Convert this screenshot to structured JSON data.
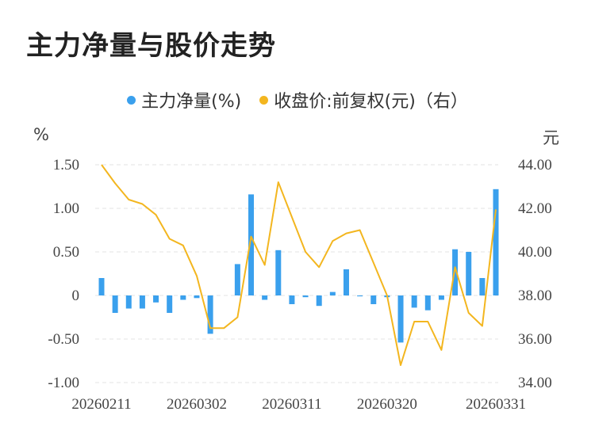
{
  "page": {
    "title": "主力净量与股价走势"
  },
  "legend": [
    {
      "label": "主力净量(%)",
      "color": "#3aa0ed"
    },
    {
      "label": "收盘价:前复权(元)（右）",
      "color": "#f3b61f"
    }
  ],
  "units": {
    "left": "%",
    "right": "元"
  },
  "colors": {
    "bar": "#3aa0ed",
    "line": "#f3b61f",
    "grid": "#e3e3e3"
  },
  "chart_data": {
    "type": "bar+line",
    "x_tick_labels": [
      "20260211",
      "20260302",
      "20260311",
      "20260320",
      "20260331"
    ],
    "left_axis": {
      "ylim": [
        -1.0,
        1.5
      ],
      "ticks": [
        "1.50",
        "1.00",
        "0.50",
        "0",
        "-0.50",
        "-1.00"
      ],
      "tick_values": [
        1.5,
        1.0,
        0.5,
        0,
        -0.5,
        -1.0
      ]
    },
    "right_axis": {
      "ylim": [
        34.0,
        44.0
      ],
      "ticks": [
        "44.00",
        "42.00",
        "40.00",
        "38.00",
        "36.00",
        "34.00"
      ],
      "tick_values": [
        44,
        42,
        40,
        38,
        36,
        34
      ]
    },
    "series": [
      {
        "name": "主力净量(%)",
        "kind": "bar",
        "values": [
          0.2,
          -0.2,
          -0.15,
          -0.15,
          -0.08,
          -0.2,
          -0.05,
          -0.03,
          -0.44,
          0.0,
          0.36,
          1.16,
          -0.05,
          0.52,
          -0.1,
          -0.02,
          -0.12,
          0.04,
          0.3,
          -0.01,
          -0.1,
          -0.02,
          -0.54,
          -0.14,
          -0.17,
          -0.05,
          0.53,
          0.5,
          0.2,
          1.22
        ]
      },
      {
        "name": "收盘价:前复权(元)（右）",
        "kind": "line",
        "values": [
          44.0,
          43.15,
          42.4,
          42.2,
          41.7,
          40.6,
          40.3,
          38.9,
          36.5,
          36.5,
          37.0,
          40.7,
          39.4,
          43.2,
          41.6,
          40.0,
          39.3,
          40.5,
          40.85,
          41.0,
          39.5,
          38.0,
          34.8,
          36.8,
          36.8,
          35.5,
          39.3,
          37.2,
          36.6,
          41.95
        ]
      }
    ],
    "x_tick_indices": [
      0,
      7,
      14,
      21,
      29
    ],
    "grid": true,
    "legend_position": "top"
  }
}
